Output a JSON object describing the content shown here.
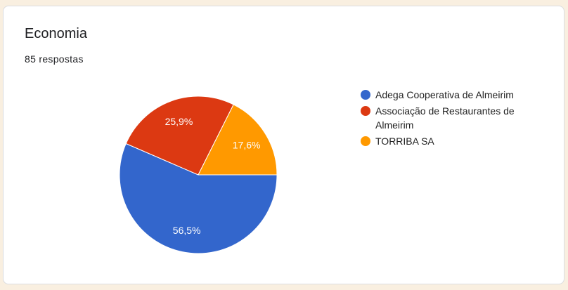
{
  "card": {
    "title": "Economia",
    "responses": "85 respostas"
  },
  "chart_data": {
    "type": "pie",
    "categories": [
      "Adega Cooperativa de Almeirim",
      "Associação de Restaurantes de Almeirim",
      "TORRIBA SA"
    ],
    "values": [
      56.5,
      25.9,
      17.6
    ],
    "labels": [
      "56,5%",
      "25,9%",
      "17,6%"
    ],
    "colors": [
      "#3366cc",
      "#dc3912",
      "#ff9900"
    ],
    "legend_position": "right"
  }
}
